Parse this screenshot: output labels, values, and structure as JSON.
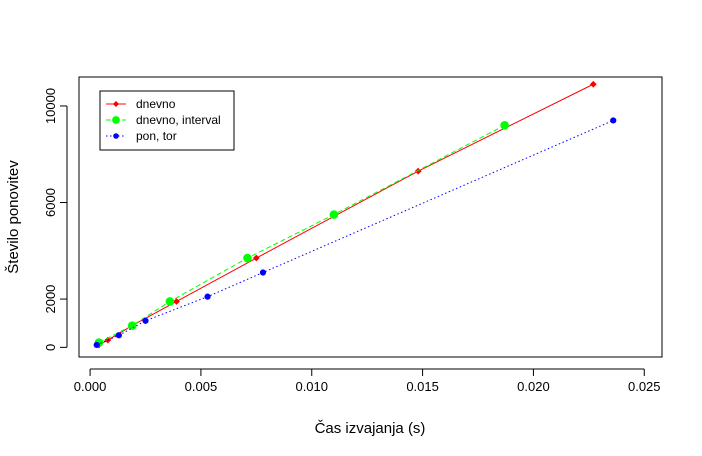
{
  "chart_data": {
    "type": "line",
    "xlabel": "Čas izvajanja (s)",
    "ylabel": "Število ponovitev",
    "xlim": [
      -0.0005,
      0.0258
    ],
    "ylim": [
      -400,
      11200
    ],
    "x_ticks": [
      0.0,
      0.005,
      0.01,
      0.015,
      0.02,
      0.025
    ],
    "x_tick_labels": [
      "0.000",
      "0.005",
      "0.010",
      "0.015",
      "0.020",
      "0.025"
    ],
    "y_ticks": [
      0,
      2000,
      6000,
      10000
    ],
    "y_tick_labels": [
      "0",
      "2000",
      "6000",
      "10000"
    ],
    "grid": false,
    "legend": {
      "position": "top-left"
    },
    "series": [
      {
        "name": "dnevno",
        "color": "#ff0000",
        "line": "solid",
        "marker": "diamond",
        "x": [
          0.0004,
          0.0008,
          0.0019,
          0.0039,
          0.0075,
          0.0148,
          0.0227
        ],
        "y": [
          100,
          300,
          900,
          1900,
          3700,
          7300,
          10900
        ]
      },
      {
        "name": "dnevno, interval",
        "color": "#00ff00",
        "line": "dashed",
        "marker": "circle-large",
        "x": [
          0.0004,
          0.0019,
          0.0036,
          0.0071,
          0.011,
          0.0187
        ],
        "y": [
          200,
          900,
          1900,
          3700,
          5500,
          9200
        ]
      },
      {
        "name": "pon, tor",
        "color": "#0000ff",
        "line": "dotted",
        "marker": "circle",
        "x": [
          0.0003,
          0.0013,
          0.0025,
          0.0053,
          0.0078,
          0.0236
        ],
        "y": [
          100,
          500,
          1100,
          2100,
          3100,
          9400
        ]
      }
    ]
  }
}
